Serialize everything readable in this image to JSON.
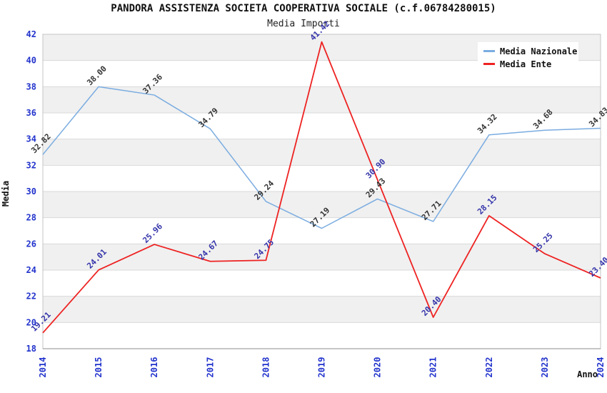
{
  "title": "PANDORA ASSISTENZA SOCIETA COOPERATIVA SOCIALE (c.f.06784280015)",
  "subtitle": "Media Importi",
  "colors": {
    "tick_label_blue": "#2233CC",
    "band_gray": "#F0F0F0",
    "gridline": "#DADADA",
    "frame": "#C4C4C4",
    "axis": "#8C8C8C",
    "title_text": "#111111"
  },
  "chart_data": {
    "type": "line",
    "x": [
      "2014",
      "2015",
      "2016",
      "2017",
      "2018",
      "2019",
      "2020",
      "2021",
      "2022",
      "2023",
      "2024"
    ],
    "xlabel": "Anno",
    "ylabel": "Media",
    "ylim": [
      18,
      42
    ],
    "ytick_step": 2,
    "grid": "horizontal-only",
    "background_bands": "alternating gray/white every 2 units (gray: 20-22, 24-26, 28-30, 32-34, 36-38, 40-42)",
    "legend_position": "top-right",
    "series": [
      {
        "name": "Media Nazionale",
        "color": "#7AACE0",
        "label_color": "#333333",
        "values": [
          32.82,
          38.0,
          37.36,
          34.79,
          29.24,
          27.19,
          29.43,
          27.71,
          34.32,
          34.68,
          34.83
        ]
      },
      {
        "name": "Media Ente",
        "color": "#EE2222",
        "label_color": "#3333AA",
        "values": [
          19.21,
          24.01,
          25.96,
          24.67,
          24.75,
          41.42,
          30.9,
          20.4,
          28.15,
          25.25,
          23.4
        ]
      }
    ]
  }
}
